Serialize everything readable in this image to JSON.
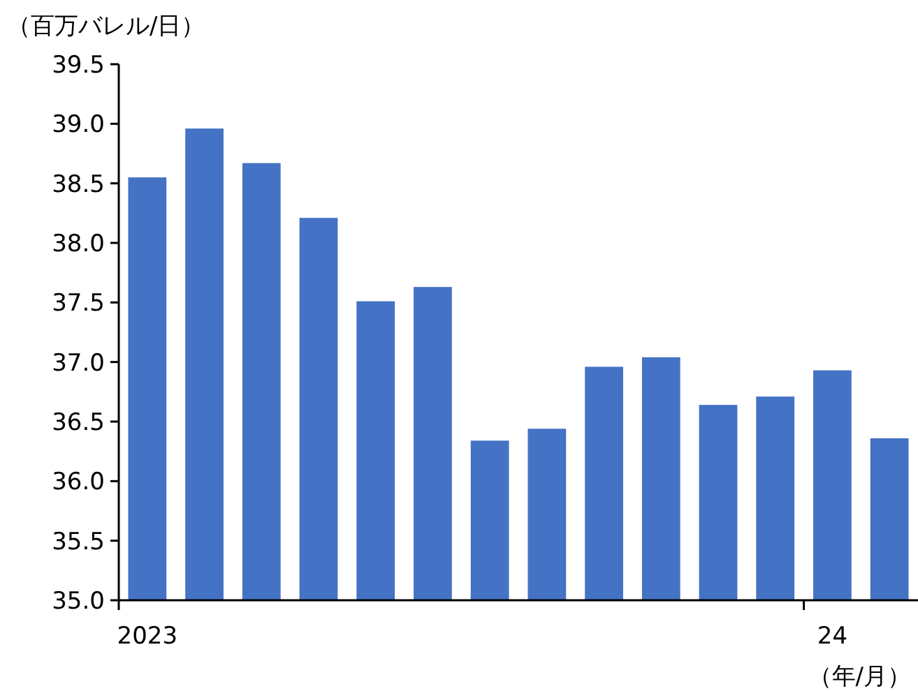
{
  "chart_data": {
    "type": "bar",
    "ylabel": "（百万バレル/日）",
    "xlabel": "（年/月）",
    "categories": [
      "2023",
      null,
      null,
      null,
      null,
      null,
      null,
      null,
      null,
      null,
      null,
      null,
      "24",
      null
    ],
    "values": [
      38.55,
      38.96,
      38.67,
      38.21,
      37.51,
      37.63,
      36.34,
      36.44,
      36.96,
      37.04,
      36.64,
      36.71,
      36.93,
      36.36
    ],
    "color": "#4472c4",
    "ylim": [
      35.0,
      39.5
    ],
    "yticks": [
      {
        "value": 35,
        "label": "35.0"
      },
      {
        "value": 35.5,
        "label": "35.5"
      },
      {
        "value": 36,
        "label": "36.0"
      },
      {
        "value": 36.5,
        "label": "36.5"
      },
      {
        "value": 37,
        "label": "37.0"
      },
      {
        "value": 37.5,
        "label": "37.5"
      },
      {
        "value": 38,
        "label": "38.0"
      },
      {
        "value": 38.5,
        "label": "38.5"
      },
      {
        "value": 39,
        "label": "39.0"
      },
      {
        "value": 39.5,
        "label": "39.5"
      }
    ],
    "grid": false
  }
}
